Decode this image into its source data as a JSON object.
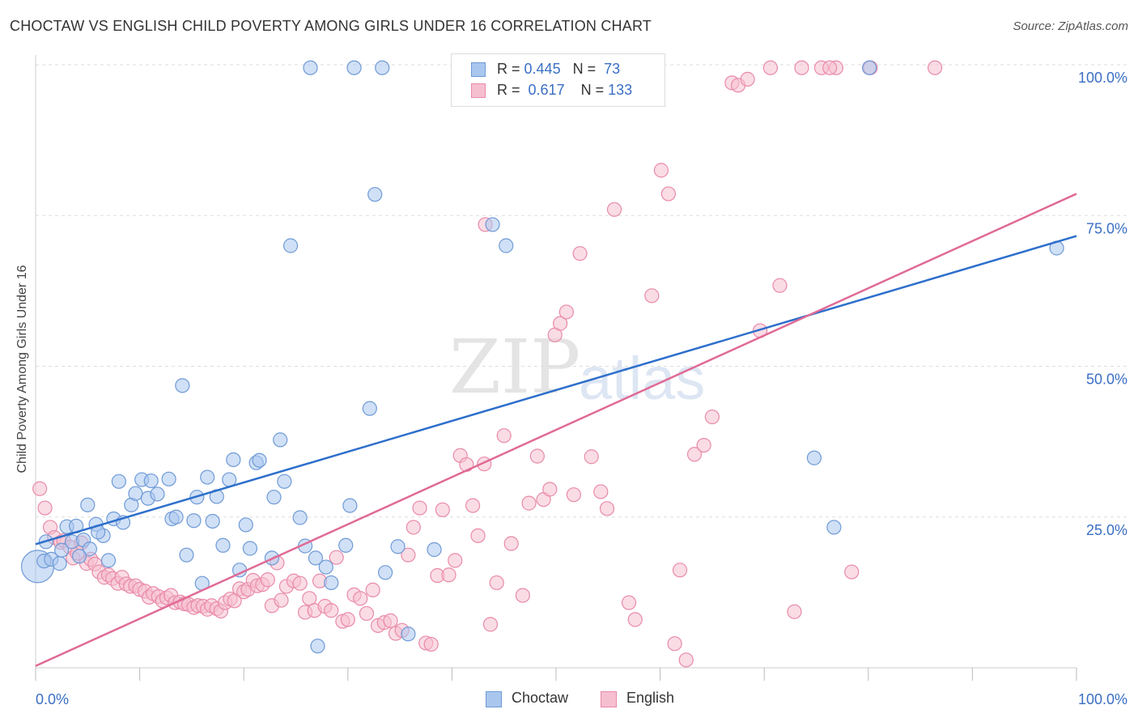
{
  "header": {
    "title": "CHOCTAW VS ENGLISH CHILD POVERTY AMONG GIRLS UNDER 16 CORRELATION CHART",
    "source": "Source: ZipAtlas.com"
  },
  "watermark": {
    "zip": "ZIP",
    "atlas": "atlas"
  },
  "legend_top": {
    "choctaw": {
      "r_label": "R =",
      "r_value": "0.445",
      "n_label": "N =",
      "n_value": "73"
    },
    "english": {
      "r_label": "R =",
      "r_value": "0.617",
      "n_label": "N =",
      "n_value": "133"
    }
  },
  "legend_bottom": {
    "choctaw": "Choctaw",
    "english": "English"
  },
  "colors": {
    "choctaw_fill": "#a9c7ee",
    "choctaw_stroke": "#6f9ad6",
    "choctaw_line": "#2d6fcb",
    "english_fill": "#f6bfd0",
    "english_stroke": "#e98aa9",
    "english_line": "#e06a96",
    "axis_text": "#3a6fc4",
    "grid": "#dddddd"
  },
  "chart_data": {
    "type": "scatter",
    "title": "CHOCTAW VS ENGLISH CHILD POVERTY AMONG GIRLS UNDER 16 CORRELATION CHART",
    "xlabel": "",
    "ylabel": "Child Poverty Among Girls Under 16",
    "xlim": [
      0,
      100
    ],
    "ylim": [
      0,
      100
    ],
    "x_tick_labels": [
      {
        "value": 0,
        "label": "0.0%"
      },
      {
        "value": 100,
        "label": "100.0%"
      }
    ],
    "y_tick_labels": [
      {
        "value": 25,
        "label": "25.0%"
      },
      {
        "value": 50,
        "label": "50.0%"
      },
      {
        "value": 75,
        "label": "75.0%"
      },
      {
        "value": 100,
        "label": "100.0%"
      }
    ],
    "series": [
      {
        "name": "Choctaw",
        "trend": [
          [
            0,
            20.5
          ],
          [
            100,
            71.6
          ]
        ],
        "points": [
          [
            0.2,
            16.8
          ],
          [
            0.8,
            17.7
          ],
          [
            1.5,
            18.0
          ],
          [
            2.3,
            17.3
          ],
          [
            3.0,
            23.4
          ],
          [
            3.5,
            20.9
          ],
          [
            3.9,
            23.5
          ],
          [
            4.6,
            21.2
          ],
          [
            5.0,
            27.0
          ],
          [
            5.8,
            23.8
          ],
          [
            5.2,
            19.7
          ],
          [
            6.5,
            21.9
          ],
          [
            7.0,
            17.8
          ],
          [
            7.5,
            24.7
          ],
          [
            8.0,
            30.9
          ],
          [
            8.4,
            24.1
          ],
          [
            9.2,
            27.0
          ],
          [
            9.6,
            28.9
          ],
          [
            10.2,
            31.2
          ],
          [
            10.8,
            28.1
          ],
          [
            11.1,
            31.0
          ],
          [
            11.7,
            28.8
          ],
          [
            12.8,
            31.3
          ],
          [
            13.1,
            24.7
          ],
          [
            13.5,
            25.0
          ],
          [
            14.1,
            46.8
          ],
          [
            14.5,
            18.7
          ],
          [
            15.2,
            24.4
          ],
          [
            15.5,
            28.3
          ],
          [
            16.0,
            14.0
          ],
          [
            16.5,
            31.6
          ],
          [
            17.0,
            24.3
          ],
          [
            17.4,
            28.4
          ],
          [
            18.0,
            20.3
          ],
          [
            18.6,
            31.2
          ],
          [
            19.0,
            34.5
          ],
          [
            19.6,
            16.2
          ],
          [
            20.2,
            23.7
          ],
          [
            20.6,
            19.8
          ],
          [
            21.2,
            34.0
          ],
          [
            21.5,
            34.4
          ],
          [
            22.7,
            18.2
          ],
          [
            22.9,
            28.3
          ],
          [
            23.5,
            37.8
          ],
          [
            23.9,
            30.9
          ],
          [
            24.5,
            70.0
          ],
          [
            25.4,
            24.9
          ],
          [
            25.9,
            20.2
          ],
          [
            26.9,
            18.2
          ],
          [
            27.1,
            3.6
          ],
          [
            27.9,
            16.7
          ],
          [
            28.4,
            14.1
          ],
          [
            29.8,
            20.3
          ],
          [
            30.2,
            26.9
          ],
          [
            32.1,
            43.0
          ],
          [
            32.6,
            78.5
          ],
          [
            33.3,
            99.5
          ],
          [
            33.6,
            15.8
          ],
          [
            34.8,
            20.1
          ],
          [
            35.8,
            5.6
          ],
          [
            38.3,
            19.6
          ],
          [
            26.4,
            99.5
          ],
          [
            30.6,
            99.5
          ],
          [
            43.9,
            73.5
          ],
          [
            45.2,
            70.0
          ],
          [
            74.8,
            34.8
          ],
          [
            76.7,
            23.3
          ],
          [
            80.1,
            99.5
          ],
          [
            98.1,
            69.6
          ],
          [
            1.0,
            20.9
          ],
          [
            2.5,
            19.5
          ],
          [
            4.2,
            18.5
          ],
          [
            6.0,
            22.5
          ]
        ]
      },
      {
        "name": "English",
        "trend": [
          [
            0,
            0.3
          ],
          [
            100,
            78.6
          ]
        ],
        "points": [
          [
            0.4,
            29.7
          ],
          [
            0.9,
            26.5
          ],
          [
            1.4,
            23.3
          ],
          [
            1.8,
            21.6
          ],
          [
            2.4,
            20.8
          ],
          [
            2.7,
            21.1
          ],
          [
            3.3,
            20.0
          ],
          [
            3.6,
            18.2
          ],
          [
            4.0,
            19.0
          ],
          [
            4.4,
            20.7
          ],
          [
            4.9,
            17.3
          ],
          [
            5.3,
            18.0
          ],
          [
            5.7,
            17.2
          ],
          [
            6.1,
            15.9
          ],
          [
            6.6,
            15.0
          ],
          [
            7.0,
            15.4
          ],
          [
            7.4,
            14.8
          ],
          [
            7.9,
            14.0
          ],
          [
            8.3,
            15.0
          ],
          [
            8.7,
            13.9
          ],
          [
            9.1,
            13.5
          ],
          [
            9.6,
            13.6
          ],
          [
            10.0,
            13.0
          ],
          [
            10.5,
            12.7
          ],
          [
            10.9,
            11.7
          ],
          [
            11.3,
            12.3
          ],
          [
            11.8,
            11.8
          ],
          [
            12.2,
            11.1
          ],
          [
            12.6,
            11.6
          ],
          [
            13.0,
            12.0
          ],
          [
            13.4,
            10.8
          ],
          [
            13.9,
            10.9
          ],
          [
            14.3,
            10.6
          ],
          [
            14.7,
            10.5
          ],
          [
            15.2,
            10.0
          ],
          [
            15.6,
            10.3
          ],
          [
            16.1,
            10.2
          ],
          [
            16.5,
            9.7
          ],
          [
            16.9,
            10.3
          ],
          [
            17.4,
            9.8
          ],
          [
            17.8,
            9.4
          ],
          [
            18.2,
            10.8
          ],
          [
            18.7,
            11.4
          ],
          [
            19.1,
            11.1
          ],
          [
            19.6,
            13.1
          ],
          [
            20.0,
            12.6
          ],
          [
            20.4,
            13.0
          ],
          [
            20.9,
            14.5
          ],
          [
            21.3,
            13.6
          ],
          [
            21.8,
            13.8
          ],
          [
            22.3,
            14.6
          ],
          [
            22.7,
            10.3
          ],
          [
            23.2,
            17.4
          ],
          [
            23.6,
            11.2
          ],
          [
            24.1,
            13.5
          ],
          [
            24.8,
            14.4
          ],
          [
            25.4,
            14.0
          ],
          [
            25.9,
            9.2
          ],
          [
            26.3,
            11.5
          ],
          [
            26.8,
            9.5
          ],
          [
            27.3,
            14.4
          ],
          [
            27.8,
            10.2
          ],
          [
            28.4,
            9.5
          ],
          [
            28.9,
            18.3
          ],
          [
            29.5,
            7.7
          ],
          [
            30.0,
            8.0
          ],
          [
            30.6,
            12.1
          ],
          [
            31.2,
            11.5
          ],
          [
            31.8,
            9.0
          ],
          [
            32.4,
            12.9
          ],
          [
            32.9,
            7.0
          ],
          [
            33.5,
            7.5
          ],
          [
            34.1,
            7.8
          ],
          [
            34.6,
            5.7
          ],
          [
            35.2,
            6.2
          ],
          [
            35.8,
            18.7
          ],
          [
            36.3,
            23.3
          ],
          [
            36.9,
            26.5
          ],
          [
            37.5,
            4.1
          ],
          [
            38.0,
            3.9
          ],
          [
            38.6,
            15.3
          ],
          [
            39.1,
            26.2
          ],
          [
            39.7,
            15.4
          ],
          [
            40.3,
            17.8
          ],
          [
            40.8,
            35.2
          ],
          [
            41.4,
            33.7
          ],
          [
            42.0,
            26.9
          ],
          [
            42.5,
            21.9
          ],
          [
            43.1,
            33.8
          ],
          [
            43.7,
            7.2
          ],
          [
            44.3,
            14.1
          ],
          [
            45.0,
            38.5
          ],
          [
            45.7,
            20.6
          ],
          [
            46.8,
            12.0
          ],
          [
            47.4,
            27.3
          ],
          [
            48.2,
            35.1
          ],
          [
            48.8,
            27.9
          ],
          [
            49.4,
            29.6
          ],
          [
            49.9,
            55.2
          ],
          [
            50.4,
            57.1
          ],
          [
            51.0,
            59.0
          ],
          [
            51.7,
            28.7
          ],
          [
            52.3,
            68.7
          ],
          [
            53.4,
            35.0
          ],
          [
            54.3,
            29.2
          ],
          [
            54.9,
            26.4
          ],
          [
            55.6,
            76.0
          ],
          [
            57.0,
            10.8
          ],
          [
            57.6,
            8.0
          ],
          [
            59.2,
            61.7
          ],
          [
            60.1,
            82.5
          ],
          [
            60.8,
            78.6
          ],
          [
            61.4,
            4.0
          ],
          [
            61.9,
            16.2
          ],
          [
            62.5,
            1.3
          ],
          [
            63.3,
            35.4
          ],
          [
            64.2,
            36.9
          ],
          [
            65.0,
            41.6
          ],
          [
            66.9,
            97.0
          ],
          [
            67.5,
            96.6
          ],
          [
            68.4,
            97.6
          ],
          [
            69.6,
            55.9
          ],
          [
            70.6,
            99.5
          ],
          [
            71.5,
            63.4
          ],
          [
            72.9,
            9.3
          ],
          [
            73.6,
            99.5
          ],
          [
            75.5,
            99.5
          ],
          [
            76.9,
            99.5
          ],
          [
            78.4,
            15.9
          ],
          [
            80.2,
            99.5
          ],
          [
            43.2,
            73.5
          ],
          [
            76.3,
            99.5
          ],
          [
            86.4,
            99.5
          ]
        ]
      }
    ]
  }
}
